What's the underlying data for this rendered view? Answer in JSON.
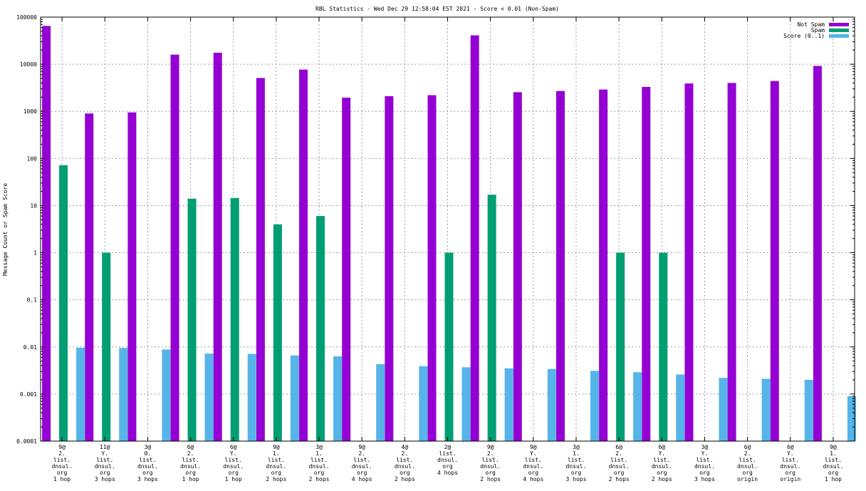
{
  "chart_data": {
    "type": "bar",
    "title": "RBL Statistics - Wed Dec 29 12:58:04 EST 2021 - Score < 0.01 (Non-Spam)",
    "xlabel": "",
    "ylabel": "Message Count or Spam Score",
    "yscale": "log",
    "ylim": [
      0.0001,
      100000
    ],
    "yticks": [
      "0.0001",
      "0.001",
      "0.01",
      "0.1",
      "1",
      "10",
      "100",
      "1000",
      "10000",
      "100000"
    ],
    "grid": true,
    "legend_position": "top-right",
    "categories": [
      [
        "9@",
        "2.",
        "list.",
        "dnsul.",
        "org",
        "1 hop"
      ],
      [
        "11@",
        "Y.",
        "list.",
        "dnsul.",
        "org",
        "3 hops"
      ],
      [
        "3@",
        "0.",
        "list.",
        "dnsul.",
        "org",
        "3 hops"
      ],
      [
        "6@",
        "2.",
        "list.",
        "dnsul.",
        "org",
        "1 hop"
      ],
      [
        "6@",
        "Y.",
        "list.",
        "dnsul.",
        "org",
        "1 hop"
      ],
      [
        "9@",
        "1.",
        "list.",
        "dnsul.",
        "org",
        "2 hops"
      ],
      [
        "3@",
        "1.",
        "list.",
        "dnsul.",
        "org",
        "2 hops"
      ],
      [
        "9@",
        "2.",
        "list.",
        "dnsul.",
        "org",
        "4 hops"
      ],
      [
        "4@",
        "2.",
        "list.",
        "dnsul.",
        "org",
        "2 hops"
      ],
      [
        "2@",
        "list.",
        "dnsul.",
        "org",
        "4 hops"
      ],
      [
        "9@",
        "2.",
        "list.",
        "dnsul.",
        "org",
        "2 hops"
      ],
      [
        "9@",
        "Y.",
        "list.",
        "dnsul.",
        "org",
        "4 hops"
      ],
      [
        "3@",
        "1.",
        "list.",
        "dnsul.",
        "org",
        "3 hops"
      ],
      [
        "6@",
        "2.",
        "list.",
        "dnsul.",
        "org",
        "2 hops"
      ],
      [
        "6@",
        "Y.",
        "list.",
        "dnsul.",
        "org",
        "2 hops"
      ],
      [
        "3@",
        "Y.",
        "list.",
        "dnsul.",
        "org",
        "3 hops"
      ],
      [
        "6@",
        "2.",
        "list.",
        "dnsul.",
        "org",
        "origin"
      ],
      [
        "6@",
        "Y.",
        "list.",
        "dnsul.",
        "org",
        "origin"
      ],
      [
        "9@",
        "1.",
        "list.",
        "dnsul.",
        "org",
        "1 hop"
      ]
    ],
    "series": [
      {
        "name": "Not Spam",
        "color": "#9400d3",
        "values": [
          65000,
          900,
          950,
          16000,
          17500,
          5100,
          7700,
          1950,
          2100,
          2200,
          41000,
          2550,
          2700,
          2900,
          3300,
          3900,
          4000,
          4400,
          9200
        ]
      },
      {
        "name": "Spam",
        "color": "#009e73",
        "values": [
          72,
          1,
          null,
          14,
          14.5,
          4,
          6,
          null,
          null,
          1,
          17,
          null,
          null,
          1,
          1,
          null,
          null,
          null,
          null
        ]
      },
      {
        "name": "Score (0..1)",
        "color": "#56b4e9",
        "values": [
          0.0096,
          0.0095,
          0.0088,
          0.0072,
          0.0071,
          0.0066,
          0.0063,
          0.0043,
          0.0039,
          0.0037,
          0.0035,
          0.0034,
          0.0031,
          0.0029,
          0.0026,
          0.0022,
          0.0021,
          0.002,
          0.0009
        ]
      }
    ]
  }
}
